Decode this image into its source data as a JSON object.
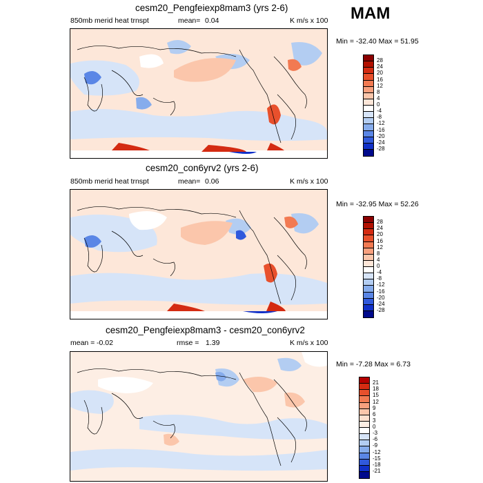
{
  "season": "MAM",
  "panels": [
    {
      "title": "cesm20_Pengfeiexp8mam3 (yrs 2-6)",
      "left_label": "850mb merid heat trnspt",
      "mean_label": "mean=",
      "mean_value": "0.04",
      "units": "K m/s x 100",
      "minmax": "Min = -32.40 Max =  51.95",
      "colorbar": {
        "labels": [
          "28",
          "24",
          "20",
          "16",
          "12",
          "8",
          "4",
          "0",
          "-4",
          "-8",
          "-12",
          "-16",
          "-20",
          "-24",
          "-28"
        ],
        "colors": [
          "#8b0000",
          "#b21000",
          "#d42b12",
          "#e8502c",
          "#f27a52",
          "#f8a07e",
          "#fbc6ab",
          "#fde6d8",
          "#ffffff",
          "#d6e4f8",
          "#b3cdf2",
          "#86acec",
          "#5a86e6",
          "#3059dc",
          "#1030c8",
          "#000a8c"
        ]
      }
    },
    {
      "title": "cesm20_con6yrv2 (yrs 2-6)",
      "left_label": "850mb merid heat trnspt",
      "mean_label": "mean=",
      "mean_value": "0.06",
      "units": "K m/s x 100",
      "minmax": "Min = -32.95 Max =  52.26",
      "colorbar": {
        "labels": [
          "28",
          "24",
          "20",
          "16",
          "12",
          "8",
          "4",
          "0",
          "-4",
          "-8",
          "-12",
          "-16",
          "-20",
          "-24",
          "-28"
        ],
        "colors": [
          "#8b0000",
          "#b21000",
          "#d42b12",
          "#e8502c",
          "#f27a52",
          "#f8a07e",
          "#fbc6ab",
          "#fde6d8",
          "#ffffff",
          "#d6e4f8",
          "#b3cdf2",
          "#86acec",
          "#5a86e6",
          "#3059dc",
          "#1030c8",
          "#000a8c"
        ]
      }
    },
    {
      "title": "cesm20_Pengfeiexp8mam3 - cesm20_con6yrv2",
      "mean_label": "mean =",
      "mean_value": "-0.02",
      "rmse_label": "rmse =",
      "rmse_value": "1.39",
      "units": "K m/s x 100",
      "minmax": "Min = -7.28 Max =  6.73",
      "colorbar": {
        "labels": [
          "21",
          "18",
          "15",
          "12",
          "9",
          "6",
          "3",
          "0",
          "-3",
          "-6",
          "-9",
          "-12",
          "-15",
          "-18",
          "-21"
        ],
        "colors": [
          "#b40000",
          "#d42b12",
          "#e8502c",
          "#f27a52",
          "#f8a07e",
          "#fbc6ab",
          "#fde0cf",
          "#fdeee4",
          "#ffffff",
          "#d6e4f8",
          "#b3cdf2",
          "#86acec",
          "#5a86e6",
          "#3059dc",
          "#1030c8",
          "#000a8c"
        ]
      }
    }
  ]
}
